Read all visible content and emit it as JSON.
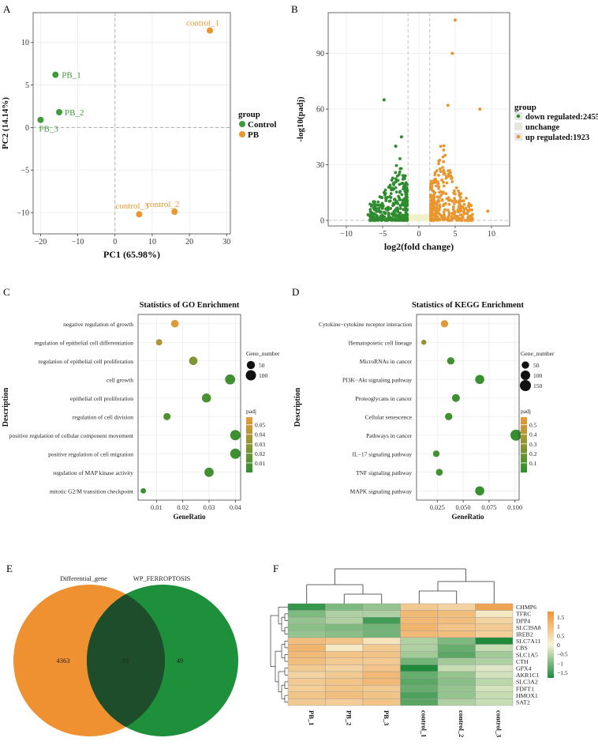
{
  "colors": {
    "green": "#2e8b2e",
    "green_pt": "#3f9a3a",
    "orange": "#e8962f",
    "pale": "#f2f0c8",
    "venn_orange": "#ef9131",
    "venn_green": "#1e8f3a",
    "venn_overlap": "#1d4d2a"
  },
  "panel_labels": [
    "A",
    "B",
    "C",
    "D",
    "E",
    "F"
  ],
  "chart_data": [
    {
      "id": "A",
      "type": "scatter",
      "title": "",
      "xlabel": "PC1 (65.98%)",
      "ylabel": "PC2 (14.14%)",
      "xlim": [
        -22,
        31
      ],
      "ylim": [
        -12.5,
        13.5
      ],
      "xticks": [
        -20,
        -10,
        0,
        10,
        20,
        30
      ],
      "xtick_labels": [
        "−20",
        "−10",
        "0",
        "10",
        "20",
        "30"
      ],
      "yticks": [
        -10,
        -5,
        0,
        5,
        10
      ],
      "ytick_labels": [
        "−10",
        "−5",
        "0",
        "5",
        "10"
      ],
      "legend_title": "group",
      "legend": [
        "Control",
        "PB"
      ],
      "points": [
        {
          "label": "PB_1",
          "x": -16,
          "y": 6.2,
          "group": "Control"
        },
        {
          "label": "PB_2",
          "x": -15,
          "y": 1.8,
          "group": "Control"
        },
        {
          "label": "PB_3",
          "x": -20,
          "y": 0.9,
          "group": "Control"
        },
        {
          "label": "control_1",
          "x": 25.5,
          "y": 11.4,
          "group": "PB"
        },
        {
          "label": "control_2",
          "x": 16,
          "y": -9.9,
          "group": "PB"
        },
        {
          "label": "control_3",
          "x": 6.5,
          "y": -10.2,
          "group": "PB"
        }
      ]
    },
    {
      "id": "B",
      "type": "scatter",
      "title": "",
      "xlabel": "log2(fold change)",
      "ylabel": "-log10(padj)",
      "xlim": [
        -12.5,
        12.5
      ],
      "ylim": [
        -3,
        112
      ],
      "xticks": [
        -10,
        -5,
        0,
        5,
        10
      ],
      "xtick_labels": [
        "−10",
        "−5",
        "0",
        "5",
        "10"
      ],
      "yticks": [
        0,
        30,
        60,
        90
      ],
      "ytick_labels": [
        "0",
        "30",
        "60",
        "90"
      ],
      "thresholds_x": [
        -1.5,
        1.5
      ],
      "threshold_y": 0,
      "legend_title": "group",
      "legend": [
        "down regulated:2455",
        "unchange",
        "up regulated:1923"
      ],
      "highlight_points": [
        {
          "x": 5.0,
          "y": 108,
          "group": "up"
        },
        {
          "x": 4.6,
          "y": 90,
          "group": "up"
        },
        {
          "x": 8.4,
          "y": 60,
          "group": "up"
        },
        {
          "x": 4.0,
          "y": 62,
          "group": "up"
        },
        {
          "x": -4.8,
          "y": 65,
          "group": "down"
        },
        {
          "x": -3.2,
          "y": 40,
          "group": "down"
        },
        {
          "x": -2.4,
          "y": 45,
          "group": "down"
        },
        {
          "x": 9.5,
          "y": 5,
          "group": "up"
        },
        {
          "x": -7.0,
          "y": 3,
          "group": "down"
        }
      ]
    },
    {
      "id": "C",
      "type": "dot",
      "title": "Statistics of GO Enrichment",
      "xlabel": "GeneRatio",
      "ylabel": "Description",
      "xlim": [
        0.003,
        0.042
      ],
      "xticks": [
        0.01,
        0.02,
        0.03,
        0.04
      ],
      "xtick_labels": [
        "0.01",
        "0.02",
        "0.03",
        "0.04"
      ],
      "size_legend_title": "Gene_number",
      "size_legend": [
        50,
        100
      ],
      "color_legend_title": "padj",
      "color_ticks": [
        0.01,
        0.02,
        0.03,
        0.04,
        0.05
      ],
      "color_range": [
        0.0,
        0.058
      ],
      "terms": [
        {
          "label": "negative regulation of growth",
          "ratio": 0.017,
          "count": 40,
          "padj": 0.055
        },
        {
          "label": "regulation of epithelial cell differentiation",
          "ratio": 0.011,
          "count": 20,
          "padj": 0.04
        },
        {
          "label": "regulation of epithelial cell proliferation",
          "ratio": 0.024,
          "count": 55,
          "padj": 0.025
        },
        {
          "label": "cell growth",
          "ratio": 0.038,
          "count": 95,
          "padj": 0.005
        },
        {
          "label": "epithelial cell proliferation",
          "ratio": 0.029,
          "count": 70,
          "padj": 0.008
        },
        {
          "label": "regulation of cell division",
          "ratio": 0.014,
          "count": 32,
          "padj": 0.01
        },
        {
          "label": "positive regulation of cellular component movement",
          "ratio": 0.04,
          "count": 100,
          "padj": 0.004
        },
        {
          "label": "positive regulation of cell migration",
          "ratio": 0.04,
          "count": 100,
          "padj": 0.004
        },
        {
          "label": "regulation of MAP kinase activity",
          "ratio": 0.03,
          "count": 75,
          "padj": 0.006
        },
        {
          "label": "mitotic G2/M transition checkpoint",
          "ratio": 0.005,
          "count": 10,
          "padj": 0.003
        }
      ]
    },
    {
      "id": "D",
      "type": "dot",
      "title": "Statistics of KEGG Enrichment",
      "xlabel": "GeneRatio",
      "ylabel": "Description",
      "xlim": [
        0.005,
        0.104
      ],
      "xticks": [
        0.025,
        0.05,
        0.075,
        0.1
      ],
      "xtick_labels": [
        "0.025",
        "0.050",
        "0.075",
        "0.100"
      ],
      "size_legend_title": "Gene_number",
      "size_legend": [
        50,
        100,
        150
      ],
      "color_legend_title": "padj",
      "color_ticks": [
        0.1,
        0.2,
        0.3,
        0.4,
        0.5
      ],
      "color_range": [
        0.0,
        0.58
      ],
      "terms": [
        {
          "label": "Cytokine−cytokine receptor interaction",
          "ratio": 0.032,
          "count": 50,
          "padj": 0.55
        },
        {
          "label": "Hematopoietic cell lineage",
          "ratio": 0.012,
          "count": 15,
          "padj": 0.3
        },
        {
          "label": "MicroRNAs in cancer",
          "ratio": 0.038,
          "count": 50,
          "padj": 0.05
        },
        {
          "label": "PI3K−Akt signaling pathway",
          "ratio": 0.066,
          "count": 90,
          "padj": 0.03
        },
        {
          "label": "Proteoglycans in cancer",
          "ratio": 0.043,
          "count": 60,
          "padj": 0.04
        },
        {
          "label": "Cellular senescence",
          "ratio": 0.036,
          "count": 50,
          "padj": 0.05
        },
        {
          "label": "Pathways in cancer",
          "ratio": 0.101,
          "count": 150,
          "padj": 0.02
        },
        {
          "label": "IL−17 signaling pathway",
          "ratio": 0.024,
          "count": 35,
          "padj": 0.06
        },
        {
          "label": "TNF signaling pathway",
          "ratio": 0.027,
          "count": 40,
          "padj": 0.07
        },
        {
          "label": "MAPK signaling pathway",
          "ratio": 0.066,
          "count": 90,
          "padj": 0.03
        }
      ]
    },
    {
      "id": "E",
      "type": "venn",
      "sets": [
        {
          "name": "Differential_gene",
          "only": "4363"
        },
        {
          "name": "WP_FERROPTOSIS",
          "only": "49"
        }
      ],
      "overlap": "15"
    },
    {
      "id": "F",
      "type": "heatmap",
      "columns": [
        "PB_1",
        "PB_2",
        "PB_3",
        "control_1",
        "control_2",
        "control_3"
      ],
      "rows": [
        "CHMP6",
        "TFRC",
        "DPP4",
        "SLC39A8",
        "IREB2",
        "SLC7A11",
        "CBS",
        "SLC1A5",
        "CTH",
        "GPX4",
        "AKR1C1",
        "SLC3A2",
        "FDFT1",
        "HMOX1",
        "SAT2"
      ],
      "values": [
        [
          -1.6,
          -1.0,
          -0.8,
          0.8,
          0.6,
          1.5
        ],
        [
          -1.0,
          -0.6,
          -0.6,
          1.1,
          1.0,
          0.2
        ],
        [
          -0.8,
          -0.6,
          -1.5,
          1.1,
          1.0,
          0.6
        ],
        [
          -0.9,
          -1.0,
          -1.1,
          1.2,
          0.9,
          0.8
        ],
        [
          -0.8,
          -0.9,
          -1.1,
          1.1,
          1.0,
          0.7
        ],
        [
          1.0,
          0.9,
          0.3,
          -0.6,
          -1.0,
          -1.8
        ],
        [
          1.2,
          0.2,
          0.8,
          -0.6,
          -1.2,
          -0.4
        ],
        [
          1.1,
          0.9,
          0.9,
          -0.7,
          -1.3,
          -0.7
        ],
        [
          1.0,
          0.8,
          0.8,
          -1.1,
          -0.7,
          -0.6
        ],
        [
          0.8,
          0.6,
          0.9,
          -1.8,
          -0.4,
          -0.2
        ],
        [
          0.6,
          0.8,
          1.1,
          -1.2,
          -0.8,
          -0.3
        ],
        [
          0.8,
          0.9,
          1.1,
          -1.3,
          -0.9,
          -0.5
        ],
        [
          0.7,
          0.9,
          0.8,
          -1.2,
          -0.8,
          -0.3
        ],
        [
          0.9,
          1.0,
          0.9,
          -1.4,
          -0.8,
          -0.4
        ],
        [
          0.8,
          0.7,
          0.9,
          -1.3,
          -0.6,
          -0.4
        ]
      ],
      "color_ticks": [
        -1.5,
        -1,
        -0.5,
        0,
        0.5,
        1,
        1.5
      ],
      "color_tick_labels": [
        "−1.5",
        "−1",
        "−0.5",
        "0",
        "0.5",
        "1",
        "1.5"
      ]
    }
  ]
}
